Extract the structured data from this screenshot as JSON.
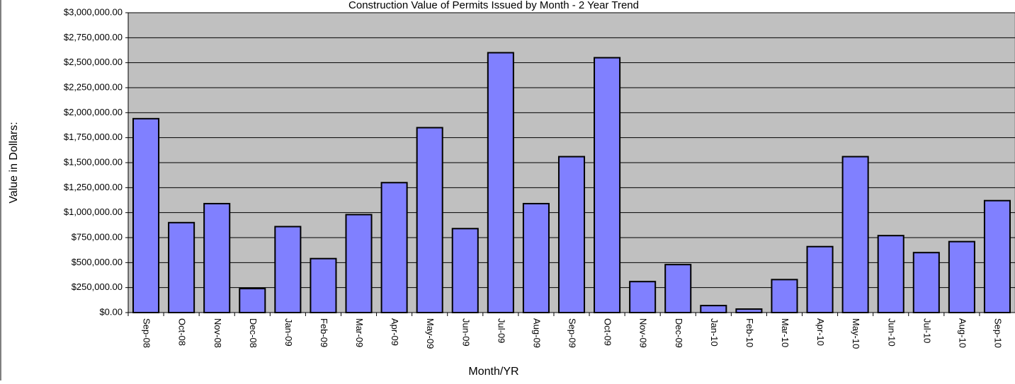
{
  "chart_data": {
    "type": "bar",
    "title": "Construction Value of Permits Issued by Month - 2 Year Trend",
    "y_label": "Value in Dollars:",
    "x_label": "Month/YR",
    "categories": [
      "Sep-08",
      "Oct-08",
      "Nov-08",
      "Dec-08",
      "Jan-09",
      "Feb-09",
      "Mar-09",
      "Apr-09",
      "May-09",
      "Jun-09",
      "Jul-09",
      "Aug-09",
      "Sep-09",
      "Oct-09",
      "Nov-09",
      "Dec-09",
      "Jan-10",
      "Feb-10",
      "Mar-10",
      "Apr-10",
      "May-10",
      "Jun-10",
      "Jul-10",
      "Aug-10",
      "Sep-10"
    ],
    "values": [
      1940000,
      900000,
      1090000,
      240000,
      860000,
      540000,
      980000,
      1300000,
      1850000,
      840000,
      2600000,
      1090000,
      1560000,
      2550000,
      310000,
      480000,
      70000,
      35000,
      330000,
      660000,
      1560000,
      770000,
      600000,
      710000,
      1120000
    ],
    "color": "#8080ff",
    "ylim": [
      0,
      3000000
    ],
    "yticks": [
      {
        "value": 0,
        "label": "$0.00"
      },
      {
        "value": 250000,
        "label": "$250,000.00"
      },
      {
        "value": 500000,
        "label": "$500,000.00"
      },
      {
        "value": 750000,
        "label": "$750,000.00"
      },
      {
        "value": 1000000,
        "label": "$1,000,000.00"
      },
      {
        "value": 1250000,
        "label": "$1,250,000.00"
      },
      {
        "value": 1500000,
        "label": "$1,500,000.00"
      },
      {
        "value": 1750000,
        "label": "$1,750,000.00"
      },
      {
        "value": 2000000,
        "label": "$2,000,000.00"
      },
      {
        "value": 2250000,
        "label": "$2,250,000.00"
      },
      {
        "value": 2500000,
        "label": "$2,500,000.00"
      },
      {
        "value": 2750000,
        "label": "$2,750,000.00"
      },
      {
        "value": 3000000,
        "label": "$3,000,000.00"
      }
    ],
    "grid": true
  }
}
